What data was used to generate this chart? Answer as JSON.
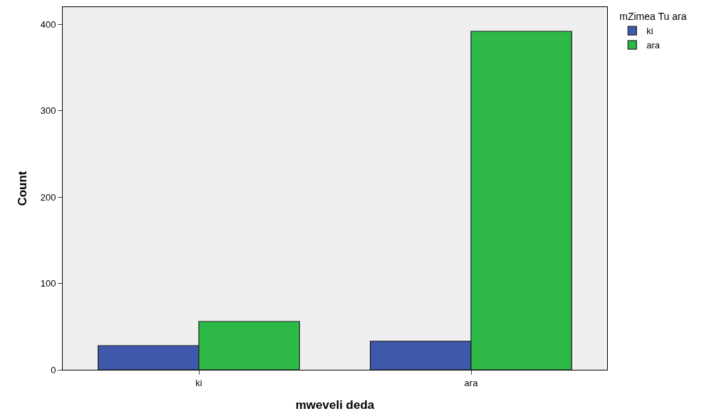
{
  "chart_data": {
    "type": "bar",
    "xlabel": "mweveli deda",
    "ylabel": "Count",
    "legend_title": "mZimea Tu ara",
    "categories": [
      "ki",
      "ara"
    ],
    "series": [
      {
        "name": "ki",
        "color": "#3e58ac",
        "values": [
          28,
          33
        ]
      },
      {
        "name": "ara",
        "color": "#2eb848",
        "values": [
          56,
          392
        ]
      }
    ],
    "ylim": [
      0,
      420
    ],
    "yticks": [
      0,
      100,
      200,
      300,
      400
    ],
    "grid": false,
    "legend": "top right"
  }
}
